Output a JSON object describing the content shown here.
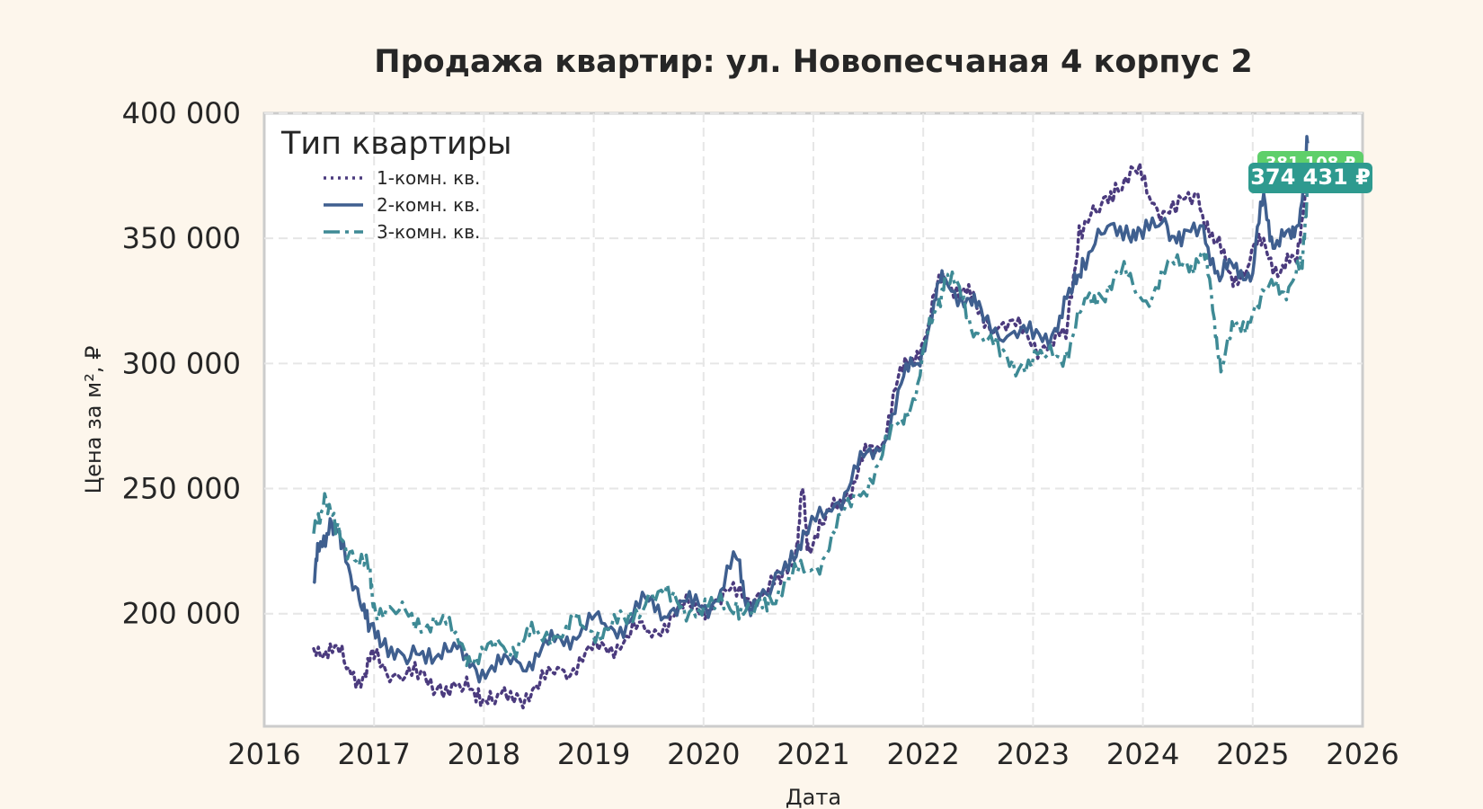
{
  "chart_data": {
    "type": "line",
    "title": "Продажа квартир: ул. Новопесчаная 4 корпус 2",
    "xlabel": "Дата",
    "ylabel": "Цена за м², ₽",
    "xlim": [
      2016,
      2026
    ],
    "ylim": [
      155000,
      400000
    ],
    "x_ticks": [
      "2016",
      "2017",
      "2018",
      "2019",
      "2020",
      "2021",
      "2022",
      "2023",
      "2024",
      "2025",
      "2026"
    ],
    "y_ticks": [
      "200 000",
      "250 000",
      "300 000",
      "350 000",
      "400 000"
    ],
    "grid": true,
    "legend": {
      "title": "Тип квартиры",
      "position": "top-left"
    },
    "series": [
      {
        "name": "1-комн. кв.",
        "color": "#4b3b7e",
        "style": "dotted",
        "points": [
          [
            2016.45,
            186000
          ],
          [
            2016.6,
            188000
          ],
          [
            2016.75,
            178000
          ],
          [
            2016.9,
            175000
          ],
          [
            2017.0,
            182000
          ],
          [
            2017.2,
            176000
          ],
          [
            2017.4,
            174000
          ],
          [
            2017.6,
            172000
          ],
          [
            2017.8,
            169000
          ],
          [
            2017.95,
            170000
          ],
          [
            2018.1,
            164000
          ],
          [
            2018.3,
            168000
          ],
          [
            2018.5,
            170000
          ],
          [
            2018.7,
            178000
          ],
          [
            2018.9,
            181000
          ],
          [
            2019.1,
            187000
          ],
          [
            2019.3,
            191000
          ],
          [
            2019.5,
            193000
          ],
          [
            2019.7,
            199000
          ],
          [
            2019.9,
            202000
          ],
          [
            2020.1,
            205000
          ],
          [
            2020.3,
            207000
          ],
          [
            2020.5,
            208000
          ],
          [
            2020.7,
            212000
          ],
          [
            2020.85,
            228000
          ],
          [
            2020.9,
            250000
          ],
          [
            2020.95,
            228000
          ],
          [
            2021.1,
            236000
          ],
          [
            2021.3,
            248000
          ],
          [
            2021.45,
            261000
          ],
          [
            2021.6,
            266000
          ],
          [
            2021.75,
            290000
          ],
          [
            2021.9,
            302000
          ],
          [
            2022.05,
            316000
          ],
          [
            2022.18,
            336000
          ],
          [
            2022.35,
            330000
          ],
          [
            2022.5,
            320000
          ],
          [
            2022.7,
            315000
          ],
          [
            2022.9,
            312000
          ],
          [
            2023.1,
            307000
          ],
          [
            2023.3,
            310000
          ],
          [
            2023.42,
            355000
          ],
          [
            2023.6,
            360000
          ],
          [
            2023.75,
            372000
          ],
          [
            2023.95,
            376000
          ],
          [
            2024.1,
            364000
          ],
          [
            2024.3,
            360000
          ],
          [
            2024.5,
            368000
          ],
          [
            2024.65,
            348000
          ],
          [
            2024.8,
            336000
          ],
          [
            2024.95,
            338000
          ],
          [
            2025.1,
            350000
          ],
          [
            2025.25,
            336000
          ],
          [
            2025.4,
            340000
          ],
          [
            2025.5,
            381108
          ]
        ]
      },
      {
        "name": "2-комн. кв.",
        "color": "#3f5f8f",
        "style": "solid",
        "points": [
          [
            2016.45,
            213000
          ],
          [
            2016.5,
            225000
          ],
          [
            2016.6,
            238000
          ],
          [
            2016.7,
            226000
          ],
          [
            2016.85,
            210000
          ],
          [
            2016.95,
            193000
          ],
          [
            2017.1,
            190000
          ],
          [
            2017.3,
            180000
          ],
          [
            2017.5,
            186000
          ],
          [
            2017.7,
            185000
          ],
          [
            2017.9,
            180000
          ],
          [
            2018.1,
            177000
          ],
          [
            2018.3,
            181000
          ],
          [
            2018.5,
            183000
          ],
          [
            2018.7,
            190000
          ],
          [
            2018.9,
            195000
          ],
          [
            2019.1,
            196000
          ],
          [
            2019.3,
            196000
          ],
          [
            2019.5,
            205000
          ],
          [
            2019.7,
            201000
          ],
          [
            2019.9,
            203000
          ],
          [
            2020.1,
            205000
          ],
          [
            2020.3,
            222000
          ],
          [
            2020.4,
            205000
          ],
          [
            2020.6,
            207000
          ],
          [
            2020.8,
            225000
          ],
          [
            2020.95,
            232000
          ],
          [
            2021.2,
            244000
          ],
          [
            2021.4,
            258000
          ],
          [
            2021.6,
            265000
          ],
          [
            2021.8,
            292000
          ],
          [
            2021.95,
            300000
          ],
          [
            2022.1,
            325000
          ],
          [
            2022.2,
            334000
          ],
          [
            2022.4,
            326000
          ],
          [
            2022.55,
            317000
          ],
          [
            2022.8,
            312000
          ],
          [
            2023.0,
            310000
          ],
          [
            2023.2,
            314000
          ],
          [
            2023.35,
            328000
          ],
          [
            2023.45,
            342000
          ],
          [
            2023.65,
            352000
          ],
          [
            2023.85,
            355000
          ],
          [
            2024.0,
            350000
          ],
          [
            2024.2,
            358000
          ],
          [
            2024.35,
            347000
          ],
          [
            2024.55,
            355000
          ],
          [
            2024.7,
            333000
          ],
          [
            2024.85,
            340000
          ],
          [
            2025.0,
            336000
          ],
          [
            2025.1,
            368000
          ],
          [
            2025.2,
            346000
          ],
          [
            2025.35,
            350000
          ],
          [
            2025.45,
            365000
          ],
          [
            2025.5,
            388000
          ]
        ]
      },
      {
        "name": "3-комн. кв.",
        "color": "#3e8a95",
        "style": "dashdot",
        "points": [
          [
            2016.45,
            232000
          ],
          [
            2016.55,
            248000
          ],
          [
            2016.65,
            232000
          ],
          [
            2016.8,
            225000
          ],
          [
            2016.95,
            217000
          ],
          [
            2017.0,
            204000
          ],
          [
            2017.2,
            200000
          ],
          [
            2017.4,
            198000
          ],
          [
            2017.6,
            196000
          ],
          [
            2017.8,
            188000
          ],
          [
            2017.95,
            180000
          ],
          [
            2018.15,
            188000
          ],
          [
            2018.35,
            188000
          ],
          [
            2018.5,
            192000
          ],
          [
            2018.75,
            195000
          ],
          [
            2018.9,
            195000
          ],
          [
            2019.1,
            194000
          ],
          [
            2019.3,
            196000
          ],
          [
            2019.5,
            208000
          ],
          [
            2019.7,
            205000
          ],
          [
            2019.9,
            202000
          ],
          [
            2020.1,
            202000
          ],
          [
            2020.3,
            205000
          ],
          [
            2020.45,
            199000
          ],
          [
            2020.6,
            207000
          ],
          [
            2020.8,
            214000
          ],
          [
            2021.0,
            218000
          ],
          [
            2021.2,
            232000
          ],
          [
            2021.4,
            248000
          ],
          [
            2021.6,
            260000
          ],
          [
            2021.8,
            278000
          ],
          [
            2021.95,
            292000
          ],
          [
            2022.1,
            320000
          ],
          [
            2022.2,
            336000
          ],
          [
            2022.35,
            325000
          ],
          [
            2022.5,
            312000
          ],
          [
            2022.7,
            303000
          ],
          [
            2022.9,
            300000
          ],
          [
            2023.1,
            302000
          ],
          [
            2023.3,
            305000
          ],
          [
            2023.45,
            322000
          ],
          [
            2023.6,
            328000
          ],
          [
            2023.8,
            336000
          ],
          [
            2024.0,
            325000
          ],
          [
            2024.2,
            336000
          ],
          [
            2024.4,
            340000
          ],
          [
            2024.55,
            345000
          ],
          [
            2024.65,
            318000
          ],
          [
            2024.72,
            298000
          ],
          [
            2024.85,
            316000
          ],
          [
            2025.0,
            320000
          ],
          [
            2025.2,
            330000
          ],
          [
            2025.35,
            332000
          ],
          [
            2025.45,
            338000
          ],
          [
            2025.5,
            374431
          ]
        ]
      }
    ],
    "annotations": [
      {
        "text": "381 108 ₽",
        "series": "1-комн. кв.",
        "color": "#5fcf6a"
      },
      {
        "text": "374 431 ₽",
        "series": "3-комн. кв.",
        "color": "#2e9a8f"
      }
    ]
  }
}
